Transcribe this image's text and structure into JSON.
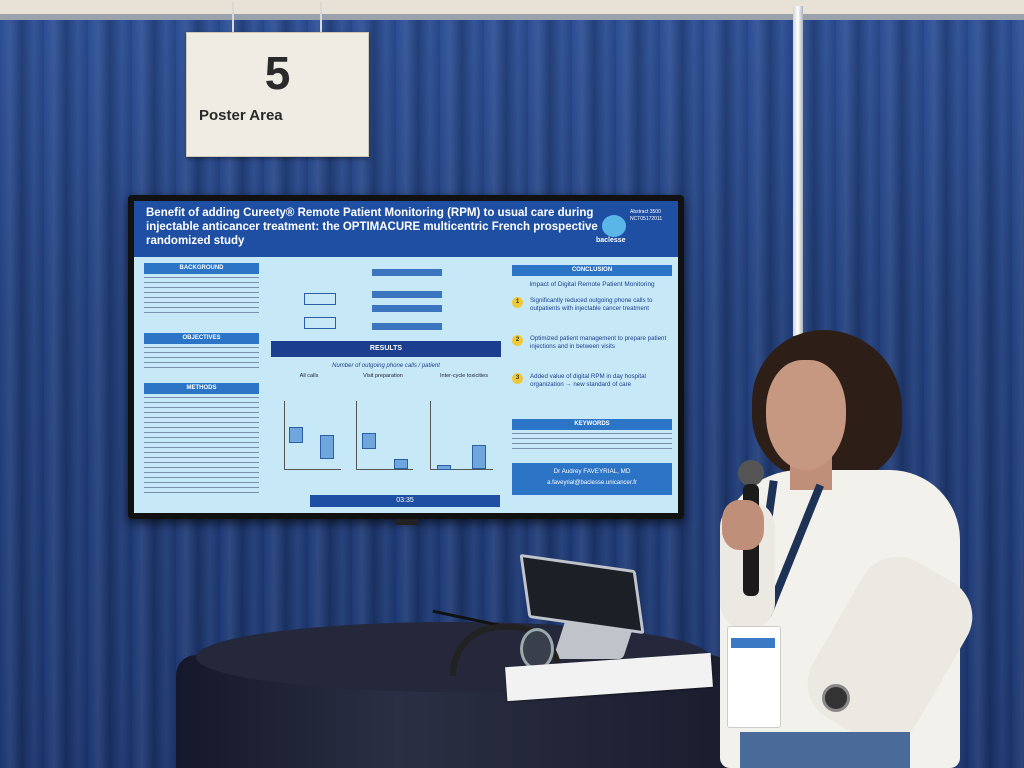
{
  "scene": {
    "sign": {
      "number": "5",
      "label": "Poster Area"
    },
    "poster": {
      "title": "Benefit of adding Cureety® Remote Patient Monitoring (RPM) to usual care during injectable anticancer treatment: the OPTIMACURE multicentric French prospective randomized study",
      "abstract_id": "Abstract 3500",
      "trial_id": "NCT05172011",
      "logo_text": "baclesse",
      "sections": {
        "background": "BACKGROUND",
        "objectives": "OBJECTIVES",
        "methods": "METHODS",
        "results": "RESULTS",
        "conclusion": "CONCLUSION",
        "keywords": "KEYWORDS"
      },
      "results_subtitle": "Number of outgoing phone calls / patient",
      "panels": [
        "All calls",
        "Visit preparation",
        "Inter-cycle toxicities"
      ],
      "conclusion_intro": "Impact of Digital Remote Patient Monitoring",
      "conclusions": [
        {
          "n": "1",
          "text": "Significantly reduced outgoing phone calls to outpatients with injectable cancer treatment"
        },
        {
          "n": "2",
          "text": "Optimized patient management to prepare patient injections and in between visits"
        },
        {
          "n": "3",
          "text": "Added value of digital RPM in day hospital organization → new standard of care"
        }
      ],
      "contact_name": "Dr Audrey FAVEYRIAL, MD",
      "contact_email": "a.faveyrial@baclesse.unicancer.fr",
      "timer": "03:35"
    },
    "colors": {
      "curtain": "#23417f",
      "poster_header": "#1e4fa3",
      "poster_bg": "#c7e9f7",
      "accent_yellow": "#f0c93a"
    }
  }
}
